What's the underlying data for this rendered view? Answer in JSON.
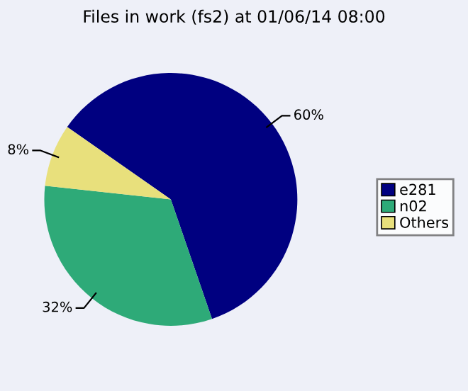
{
  "chart_data": {
    "type": "pie",
    "title": "Files in work (fs2) at 01/06/14 08:00",
    "categories": [
      "e281",
      "n02",
      "Others"
    ],
    "values": [
      60,
      32,
      8
    ],
    "value_labels": [
      "60%",
      "32%",
      "8%"
    ],
    "colors": [
      "#000080",
      "#2eaa78",
      "#e8e07c"
    ],
    "legend": "right"
  }
}
